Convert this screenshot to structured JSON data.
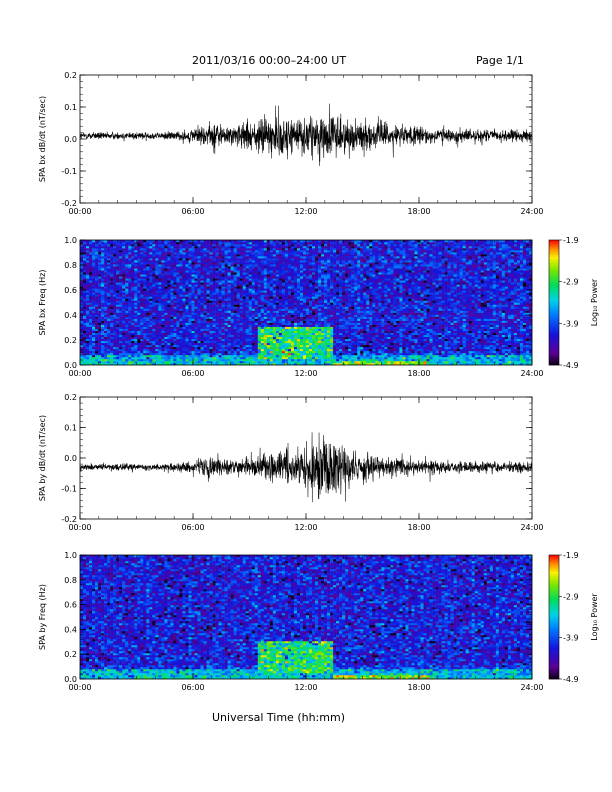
{
  "header": {
    "title": "2011/03/16  00:00–24:00 UT",
    "page": "Page 1/1"
  },
  "figure": {
    "xlabel": "Universal Time (hh:mm)"
  },
  "chart_data": [
    {
      "type": "line",
      "ylabel": "SPA bx dB/dt (nT/sec)",
      "x_ticks": [
        "00:00",
        "06:00",
        "12:00",
        "18:00",
        "24:00"
      ],
      "xlim": [
        0,
        24
      ],
      "ylim": [
        -0.2,
        0.2
      ],
      "y_ticks": [
        "-0.2",
        "-0.1",
        "0.0",
        "0.1",
        "0.2"
      ],
      "y_tick_values": [
        -0.2,
        -0.1,
        0.0,
        0.1,
        0.2
      ],
      "baseline": 0.01,
      "envelope_hours": [
        0,
        4,
        6,
        7,
        8,
        9,
        10,
        11,
        12,
        13,
        14,
        15,
        16,
        18,
        20,
        22,
        24
      ],
      "envelope_amplitude": [
        0.012,
        0.012,
        0.02,
        0.05,
        0.03,
        0.05,
        0.07,
        0.07,
        0.06,
        0.08,
        0.06,
        0.05,
        0.04,
        0.03,
        0.025,
        0.02,
        0.02
      ]
    },
    {
      "type": "heatmap",
      "ylabel": "SPA bx Freq (Hz)",
      "x_ticks": [
        "00:00",
        "06:00",
        "12:00",
        "18:00",
        "24:00"
      ],
      "xlim": [
        0,
        24
      ],
      "ylim": [
        0.0,
        1.0
      ],
      "y_ticks": [
        "0.0",
        "0.2",
        "0.4",
        "0.6",
        "0.8",
        "1.0"
      ],
      "y_tick_values": [
        0.0,
        0.2,
        0.4,
        0.6,
        0.8,
        1.0
      ],
      "colorbar": {
        "label": "Log₁₀ Power",
        "ticks": [
          "-1.9",
          "-2.9",
          "-3.9",
          "-4.9"
        ],
        "range": [
          -4.9,
          -1.9
        ]
      },
      "description_regions": [
        {
          "hours": [
            9.5,
            13.5
          ],
          "freq": [
            0.05,
            0.3
          ],
          "level": -3.0
        },
        {
          "hours": [
            13.5,
            18.5
          ],
          "freq": [
            0.0,
            0.04
          ],
          "level": -2.6
        },
        {
          "hours": [
            0,
            24
          ],
          "freq": [
            0.0,
            0.08
          ],
          "level": -3.5
        }
      ]
    },
    {
      "type": "line",
      "ylabel": "SPA by dB/dt (nT/sec)",
      "x_ticks": [
        "00:00",
        "06:00",
        "12:00",
        "18:00",
        "24:00"
      ],
      "xlim": [
        0,
        24
      ],
      "ylim": [
        -0.2,
        0.2
      ],
      "y_ticks": [
        "-0.2",
        "-0.1",
        "0.0",
        "0.1",
        "0.2"
      ],
      "y_tick_values": [
        -0.2,
        -0.1,
        0.0,
        0.1,
        0.2
      ],
      "baseline": -0.03,
      "envelope_hours": [
        0,
        4,
        6,
        7,
        8,
        9,
        10,
        11,
        12,
        13,
        14,
        15,
        16,
        18,
        20,
        22,
        24
      ],
      "envelope_amplitude": [
        0.012,
        0.012,
        0.02,
        0.04,
        0.025,
        0.035,
        0.05,
        0.06,
        0.08,
        0.12,
        0.07,
        0.05,
        0.035,
        0.025,
        0.02,
        0.018,
        0.018
      ]
    },
    {
      "type": "heatmap",
      "ylabel": "SPA by Freq (Hz)",
      "x_ticks": [
        "00:00",
        "06:00",
        "12:00",
        "18:00",
        "24:00"
      ],
      "xlim": [
        0,
        24
      ],
      "ylim": [
        0.0,
        1.0
      ],
      "y_ticks": [
        "0.0",
        "0.2",
        "0.4",
        "0.6",
        "0.8",
        "1.0"
      ],
      "y_tick_values": [
        0.0,
        0.2,
        0.4,
        0.6,
        0.8,
        1.0
      ],
      "colorbar": {
        "label": "Log₁₀ Power",
        "ticks": [
          "-1.9",
          "-2.9",
          "-3.9",
          "-4.9"
        ],
        "range": [
          -4.9,
          -1.9
        ]
      },
      "description_regions": [
        {
          "hours": [
            9.5,
            13.5
          ],
          "freq": [
            0.05,
            0.3
          ],
          "level": -3.0
        },
        {
          "hours": [
            13.5,
            18.5
          ],
          "freq": [
            0.0,
            0.04
          ],
          "level": -2.6
        },
        {
          "hours": [
            0,
            24
          ],
          "freq": [
            0.0,
            0.08
          ],
          "level": -3.5
        }
      ]
    }
  ]
}
